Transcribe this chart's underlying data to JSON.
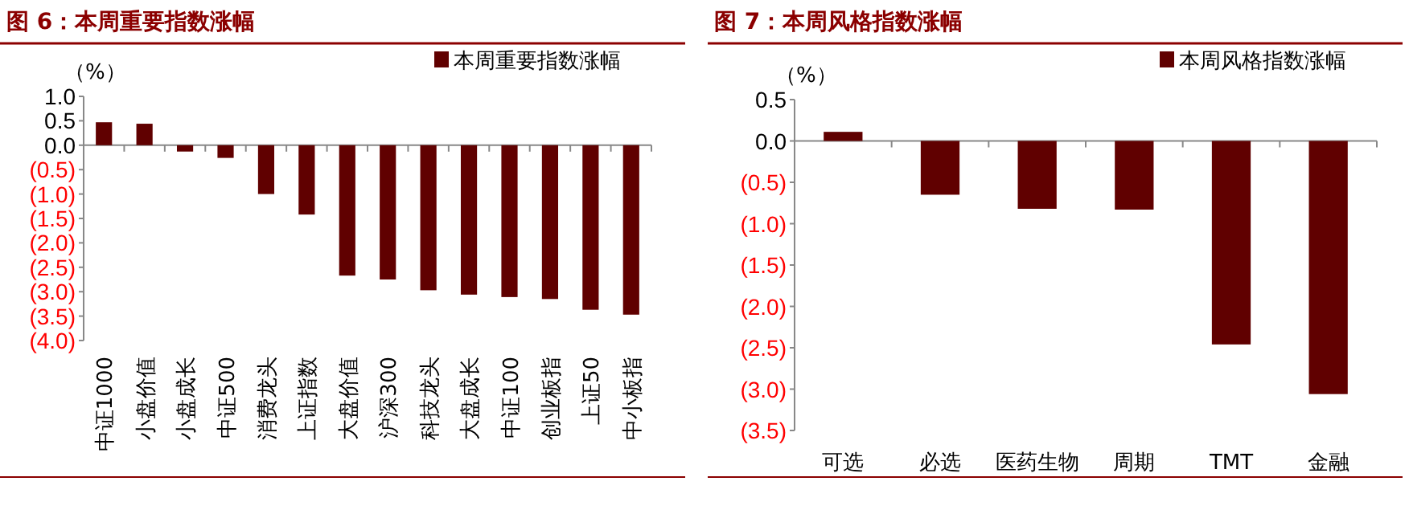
{
  "chart_data": [
    {
      "type": "bar",
      "title": "图 6：本周重要指数涨幅",
      "ylabel": "（%）",
      "categories": [
        "中证1000",
        "小盘价值",
        "小盘成长",
        "中证500",
        "消费龙头",
        "上证指数",
        "大盘价值",
        "沪深300",
        "科技龙头",
        "大盘成长",
        "中证100",
        "创业板指",
        "上证50",
        "中小板指"
      ],
      "series": [
        {
          "name": "本周重要指数涨幅",
          "color": "#600000",
          "values": [
            0.47,
            0.44,
            -0.13,
            -0.26,
            -1.0,
            -1.42,
            -2.67,
            -2.75,
            -2.97,
            -3.06,
            -3.11,
            -3.15,
            -3.37,
            -3.47
          ]
        }
      ],
      "ylim": [
        -4.0,
        1.0
      ],
      "legend": "top right",
      "yticks": [
        {
          "value": 1.0,
          "label": "1.0"
        },
        {
          "value": 0.5,
          "label": "0.5"
        },
        {
          "value": 0,
          "label": "0.0"
        },
        {
          "value": -0.5,
          "label": "(0.5)"
        },
        {
          "value": -1.0,
          "label": "(1.0)"
        },
        {
          "value": -1.5,
          "label": "(1.5)"
        },
        {
          "value": -2.0,
          "label": "(2.0)"
        },
        {
          "value": -2.5,
          "label": "(2.5)"
        },
        {
          "value": -3.0,
          "label": "(3.0)"
        },
        {
          "value": -3.5,
          "label": "(3.5)"
        },
        {
          "value": -4.0,
          "label": "(4.0)"
        }
      ]
    },
    {
      "type": "bar",
      "title": "图 7：本周风格指数涨幅",
      "ylabel": "（%）",
      "categories": [
        "可选",
        "必选",
        "医药生物",
        "周期",
        "TMT",
        "金融"
      ],
      "series": [
        {
          "name": "本周风格指数涨幅",
          "color": "#600000",
          "values": [
            0.11,
            -0.65,
            -0.82,
            -0.83,
            -2.46,
            -3.06
          ]
        }
      ],
      "ylim": [
        -3.5,
        0.5
      ],
      "legend": "top right",
      "yticks": [
        {
          "value": 0.5,
          "label": "0.5"
        },
        {
          "value": 0,
          "label": "0.0"
        },
        {
          "value": -0.5,
          "label": "(0.5)"
        },
        {
          "value": -1.0,
          "label": "(1.0)"
        },
        {
          "value": -1.5,
          "label": "(1.5)"
        },
        {
          "value": -2.0,
          "label": "(2.0)"
        },
        {
          "value": -2.5,
          "label": "(2.5)"
        },
        {
          "value": -3.0,
          "label": "(3.0)"
        },
        {
          "value": -3.5,
          "label": "(3.5)"
        }
      ]
    }
  ]
}
